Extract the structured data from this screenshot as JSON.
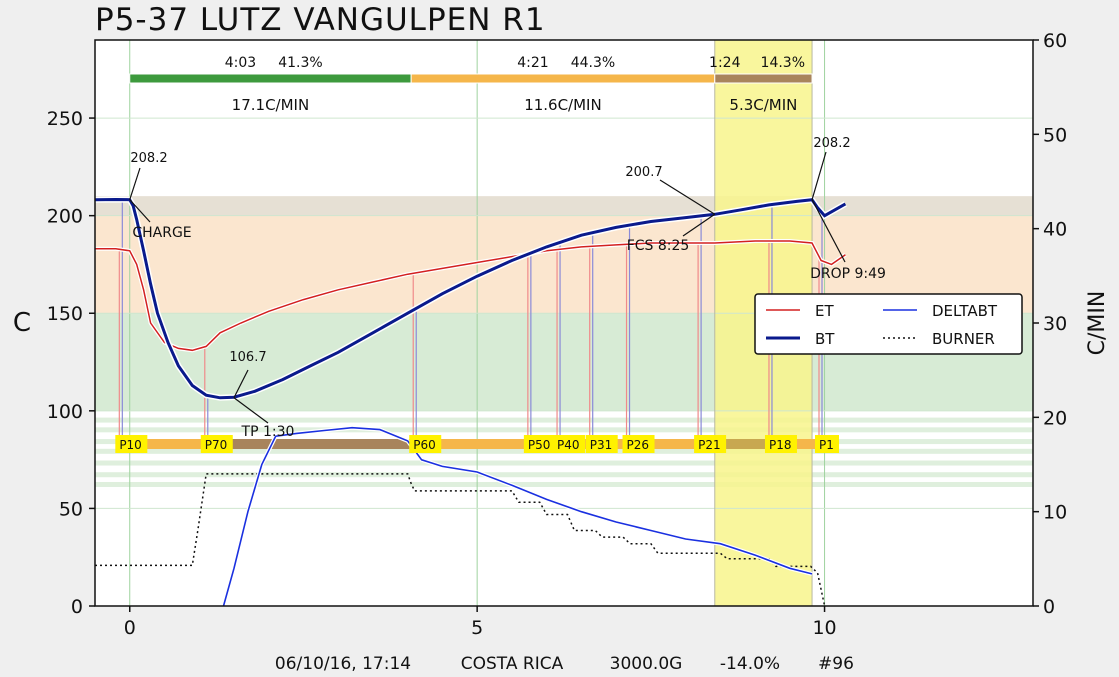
{
  "title": "P5-37 LUTZ VANGULPEN R1",
  "footer": {
    "date": "06/10/16, 17:14",
    "origin": "COSTA RICA",
    "weight": "3000.0G",
    "loss": "-14.0%",
    "batch": "#96"
  },
  "phases": [
    {
      "time": "4:03",
      "pct": "41.3%",
      "rate": "17.1C/MIN",
      "color": "#3d9a3d"
    },
    {
      "time": "4:21",
      "pct": "44.3%",
      "rate": "11.6C/MIN",
      "color": "#f5b64a"
    },
    {
      "time": "1:24",
      "pct": "14.3%",
      "rate": "5.3C/MIN",
      "color": "#a8845c"
    }
  ],
  "annotations": {
    "charge_temp": "208.2",
    "charge_label": "CHARGE",
    "tp_temp": "106.7",
    "tp_label": "TP 1:30",
    "fcs_temp": "200.7",
    "fcs_label": "FCS 8:25",
    "drop_temp": "208.2",
    "drop_label": "DROP 9:49"
  },
  "legend": {
    "et": "ET",
    "bt": "BT",
    "deltabt": "DELTABT",
    "burner": "BURNER"
  },
  "chart_data": {
    "type": "line",
    "xlabel": "",
    "ylabel": "C",
    "y2label": "C/MIN",
    "xlim": [
      -0.5,
      13
    ],
    "ylim": [
      0,
      290
    ],
    "y2lim": [
      0,
      60
    ],
    "xticks": [
      0,
      5,
      10
    ],
    "yticks": [
      0,
      50,
      100,
      150,
      200,
      250
    ],
    "y2ticks": [
      0,
      10,
      20,
      30,
      40,
      50,
      60
    ],
    "legend_position": "right",
    "colors": {
      "ET": "#d32020",
      "BT": "#0a1a8c",
      "DELTABT": "#1a30e0",
      "BURNER": "#111111",
      "event_lines_et": "#f08a8a",
      "event_lines_bt": "#8a8ad8",
      "band_top": "#e8e2d6",
      "band_orange": "#fbe6d0",
      "band_green": "#d5ead3",
      "highlight": "#f8f58c"
    },
    "highlight_window": [
      8.42,
      9.82
    ],
    "bands": [
      {
        "from": 200,
        "to": 210,
        "color": "#e6e0d4"
      },
      {
        "from": 150,
        "to": 200,
        "color": "#fbe6cf"
      },
      {
        "from": 100,
        "to": 150,
        "color": "#d7ebd5"
      }
    ],
    "series": [
      {
        "name": "ET",
        "axis": "left",
        "x": [
          -0.5,
          -0.2,
          0.0,
          0.1,
          0.2,
          0.3,
          0.5,
          0.7,
          0.9,
          1.1,
          1.3,
          1.6,
          2.0,
          2.5,
          3.0,
          3.5,
          4.0,
          4.5,
          5.0,
          5.5,
          6.0,
          6.5,
          7.0,
          7.5,
          8.0,
          8.42,
          9.0,
          9.5,
          9.82,
          9.95,
          10.1,
          10.3
        ],
        "values": [
          183,
          183,
          182,
          175,
          162,
          145,
          135,
          132,
          131,
          133,
          140,
          145,
          151,
          157,
          162,
          166,
          170,
          173,
          176,
          179,
          182,
          184,
          185,
          186,
          186,
          186,
          187,
          187,
          186,
          177,
          175,
          180
        ]
      },
      {
        "name": "BT",
        "axis": "left",
        "x": [
          -0.5,
          -0.2,
          0.0,
          0.05,
          0.1,
          0.2,
          0.3,
          0.4,
          0.55,
          0.7,
          0.9,
          1.1,
          1.3,
          1.5,
          1.8,
          2.2,
          2.6,
          3.0,
          3.5,
          4.0,
          4.5,
          5.0,
          5.5,
          6.0,
          6.5,
          7.0,
          7.5,
          8.0,
          8.42,
          8.8,
          9.2,
          9.6,
          9.82,
          9.9,
          10.0,
          10.15,
          10.3
        ],
        "values": [
          208.2,
          208.3,
          208.2,
          205,
          198,
          182,
          165,
          150,
          135,
          123,
          113,
          108,
          106.7,
          107,
          110,
          116,
          123,
          130,
          140,
          150,
          160,
          169,
          177,
          184,
          190,
          194,
          197,
          199,
          200.7,
          203,
          205.5,
          207.3,
          208.2,
          204,
          200,
          203,
          206
        ]
      },
      {
        "name": "DELTABT",
        "axis": "right",
        "x": [
          1.35,
          1.5,
          1.7,
          1.9,
          2.1,
          2.4,
          2.8,
          3.2,
          3.6,
          4.0,
          4.2,
          4.5,
          5.0,
          5.5,
          6.0,
          6.5,
          7.0,
          7.5,
          8.0,
          8.5,
          9.0,
          9.5,
          9.82
        ],
        "values": [
          0,
          4,
          10,
          15,
          18,
          18.3,
          18.6,
          18.9,
          18.7,
          17.5,
          15.5,
          14.8,
          14.2,
          12.8,
          11.3,
          10.0,
          8.9,
          8.0,
          7.1,
          6.6,
          5.4,
          4.0,
          3.4
        ]
      },
      {
        "name": "BURNER",
        "axis": "right",
        "x": [
          -0.5,
          0.9,
          0.98,
          1.1,
          1.35,
          4.0,
          4.05,
          4.1,
          5.5,
          5.6,
          5.9,
          6.0,
          6.3,
          6.4,
          6.7,
          6.8,
          7.1,
          7.2,
          7.5,
          7.6,
          8.5,
          8.6,
          9.2,
          9.3,
          9.8,
          9.9,
          10.0
        ],
        "values": [
          4.3,
          4.3,
          8,
          14,
          14,
          14,
          13,
          12.2,
          12.2,
          11,
          11,
          9.7,
          9.7,
          8,
          8,
          7.3,
          7.3,
          6.6,
          6.6,
          5.6,
          5.6,
          5.0,
          5.0,
          4.2,
          4.2,
          3.5,
          0
        ]
      }
    ],
    "events": [
      {
        "label": "P10",
        "time": -0.15,
        "color": "#fff200"
      },
      {
        "label": "P70",
        "time": 1.08,
        "color": "#fff200"
      },
      {
        "label": "P60",
        "time": 4.08,
        "color": "#fff200"
      },
      {
        "label": "P50",
        "time": 5.73,
        "color": "#fff200"
      },
      {
        "label": "P40",
        "time": 6.15,
        "color": "#fff200"
      },
      {
        "label": "P31",
        "time": 6.62,
        "color": "#fff200"
      },
      {
        "label": "P26",
        "time": 7.15,
        "color": "#fff200"
      },
      {
        "label": "P21",
        "time": 8.18,
        "color": "#fff200"
      },
      {
        "label": "P18",
        "time": 9.2,
        "color": "#fff200"
      },
      {
        "label": "P1",
        "time": 9.92,
        "color": "#fff200"
      }
    ]
  }
}
